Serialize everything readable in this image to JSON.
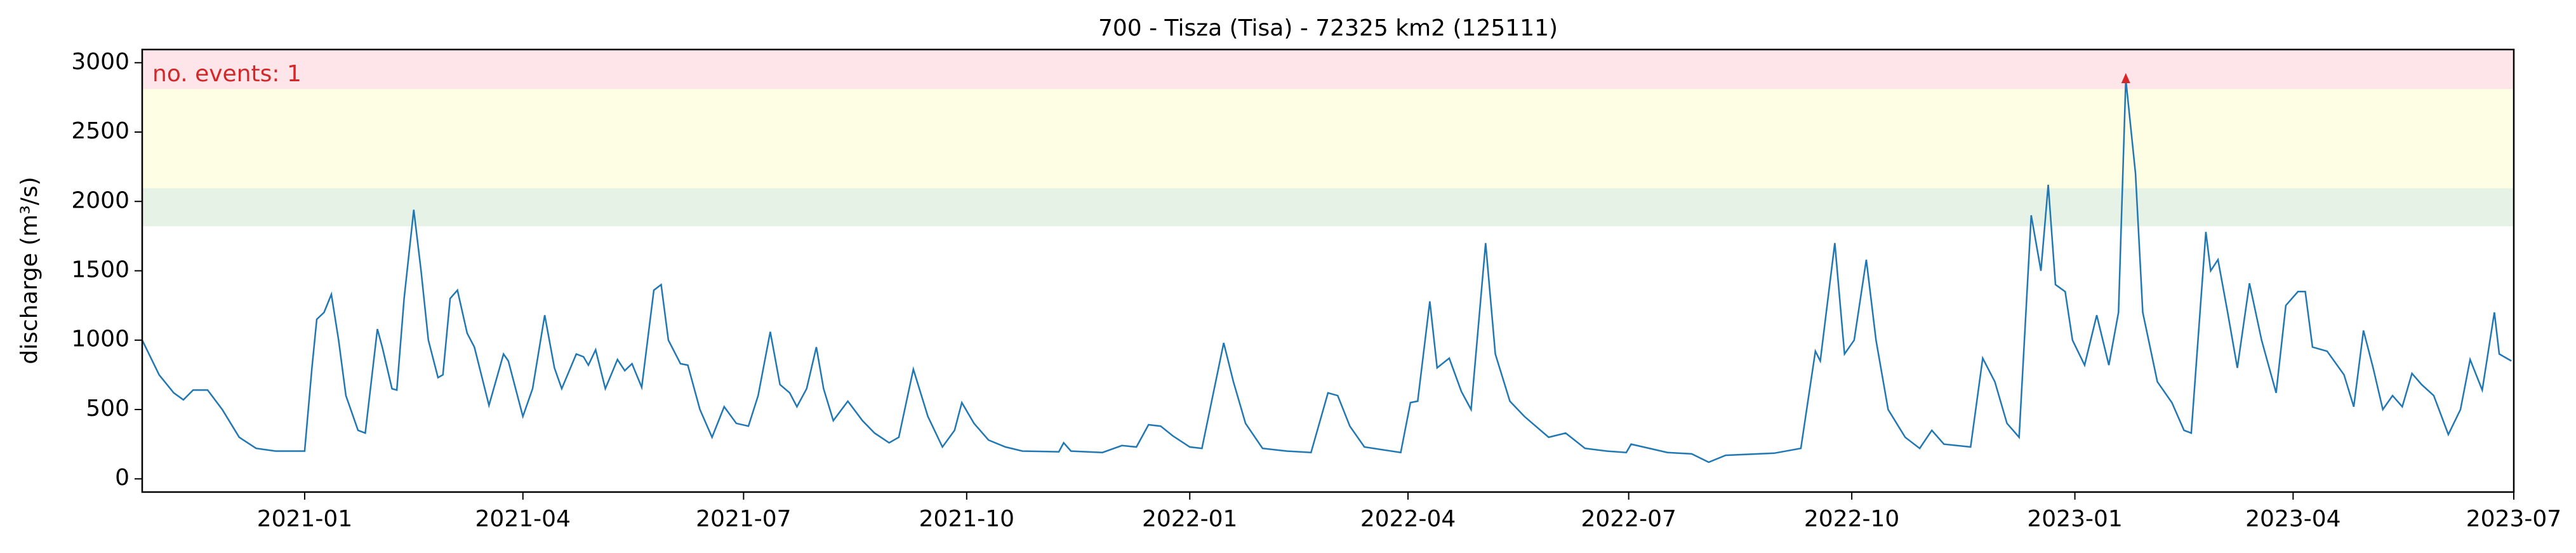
{
  "chart_data": {
    "type": "line",
    "title": "700 - Tisza (Tisa) - 72325 km2 (125111)",
    "y_label": "discharge (m³/s)",
    "annotation": "no. events: 1",
    "xlim": [
      "2020-10-26",
      "2023-07-01"
    ],
    "ylim": [
      -95,
      3095
    ],
    "yticks": [
      0,
      500,
      1000,
      1500,
      2000,
      2500,
      3000
    ],
    "xticks": [
      {
        "value": "2021-01-01",
        "label": "2021-01"
      },
      {
        "value": "2021-04-01",
        "label": "2021-04"
      },
      {
        "value": "2021-07-01",
        "label": "2021-07"
      },
      {
        "value": "2021-10-01",
        "label": "2021-10"
      },
      {
        "value": "2022-01-01",
        "label": "2022-01"
      },
      {
        "value": "2022-04-01",
        "label": "2022-04"
      },
      {
        "value": "2022-07-01",
        "label": "2022-07"
      },
      {
        "value": "2022-10-01",
        "label": "2022-10"
      },
      {
        "value": "2023-01-01",
        "label": "2023-01"
      },
      {
        "value": "2023-04-01",
        "label": "2023-04"
      },
      {
        "value": "2023-07-01",
        "label": "2023-07"
      }
    ],
    "bands": [
      {
        "from": 1821,
        "to": 2095,
        "color": "#e5f2e5"
      },
      {
        "from": 2095,
        "to": 2810,
        "color": "#fefee5"
      },
      {
        "from": 2810,
        "to": 3095,
        "color": "#fee5ea"
      }
    ],
    "events": {
      "color": "#d62728",
      "x": [
        "2023-01-22"
      ],
      "values": [
        2880
      ]
    },
    "x": [
      "2020-10-26",
      "2020-11-02",
      "2020-11-08",
      "2020-11-12",
      "2020-11-16",
      "2020-11-22",
      "2020-11-28",
      "2020-12-05",
      "2020-12-12",
      "2020-12-20",
      "2020-12-28",
      "2021-01-01",
      "2021-01-04",
      "2021-01-06",
      "2021-01-09",
      "2021-01-12",
      "2021-01-15",
      "2021-01-18",
      "2021-01-23",
      "2021-01-26",
      "2021-01-31",
      "2021-02-02",
      "2021-02-06",
      "2021-02-08",
      "2021-02-11",
      "2021-02-15",
      "2021-02-18",
      "2021-02-21",
      "2021-02-25",
      "2021-02-27",
      "2021-03-02",
      "2021-03-05",
      "2021-03-09",
      "2021-03-12",
      "2021-03-18",
      "2021-03-24",
      "2021-03-26",
      "2021-04-01",
      "2021-04-05",
      "2021-04-10",
      "2021-04-14",
      "2021-04-17",
      "2021-04-23",
      "2021-04-26",
      "2021-04-28",
      "2021-05-01",
      "2021-05-05",
      "2021-05-10",
      "2021-05-13",
      "2021-05-16",
      "2021-05-20",
      "2021-05-25",
      "2021-05-28",
      "2021-05-31",
      "2021-06-05",
      "2021-06-08",
      "2021-06-13",
      "2021-06-18",
      "2021-06-23",
      "2021-06-28",
      "2021-07-03",
      "2021-07-07",
      "2021-07-12",
      "2021-07-16",
      "2021-07-20",
      "2021-07-23",
      "2021-07-27",
      "2021-07-31",
      "2021-08-03",
      "2021-08-07",
      "2021-08-13",
      "2021-08-19",
      "2021-08-24",
      "2021-08-30",
      "2021-09-03",
      "2021-09-09",
      "2021-09-15",
      "2021-09-21",
      "2021-09-26",
      "2021-09-29",
      "2021-10-04",
      "2021-10-10",
      "2021-10-17",
      "2021-10-24",
      "2021-11-08",
      "2021-11-10",
      "2021-11-13",
      "2021-11-26",
      "2021-12-04",
      "2021-12-10",
      "2021-12-15",
      "2021-12-20",
      "2021-12-25",
      "2022-01-01",
      "2022-01-06",
      "2022-01-15",
      "2022-01-19",
      "2022-01-24",
      "2022-01-31",
      "2022-02-10",
      "2022-02-20",
      "2022-02-27",
      "2022-03-03",
      "2022-03-08",
      "2022-03-14",
      "2022-03-29",
      "2022-04-02",
      "2022-04-05",
      "2022-04-10",
      "2022-04-13",
      "2022-04-18",
      "2022-04-23",
      "2022-04-27",
      "2022-05-03",
      "2022-05-07",
      "2022-05-13",
      "2022-05-19",
      "2022-05-29",
      "2022-06-05",
      "2022-06-13",
      "2022-06-22",
      "2022-06-30",
      "2022-07-02",
      "2022-07-17",
      "2022-07-27",
      "2022-08-03",
      "2022-08-10",
      "2022-08-30",
      "2022-09-10",
      "2022-09-16",
      "2022-09-18",
      "2022-09-24",
      "2022-09-28",
      "2022-10-02",
      "2022-10-07",
      "2022-10-11",
      "2022-10-16",
      "2022-10-23",
      "2022-10-29",
      "2022-11-03",
      "2022-11-08",
      "2022-11-19",
      "2022-11-24",
      "2022-11-29",
      "2022-12-04",
      "2022-12-09",
      "2022-12-14",
      "2022-12-18",
      "2022-12-21",
      "2022-12-24",
      "2022-12-28",
      "2022-12-31",
      "2023-01-05",
      "2023-01-10",
      "2023-01-15",
      "2023-01-19",
      "2023-01-22",
      "2023-01-26",
      "2023-01-29",
      "2023-02-04",
      "2023-02-10",
      "2023-02-15",
      "2023-02-18",
      "2023-02-24",
      "2023-02-26",
      "2023-03-01",
      "2023-03-05",
      "2023-03-09",
      "2023-03-14",
      "2023-03-19",
      "2023-03-25",
      "2023-03-29",
      "2023-04-03",
      "2023-04-06",
      "2023-04-09",
      "2023-04-15",
      "2023-04-22",
      "2023-04-26",
      "2023-04-30",
      "2023-05-04",
      "2023-05-08",
      "2023-05-12",
      "2023-05-16",
      "2023-05-20",
      "2023-05-24",
      "2023-05-29",
      "2023-06-04",
      "2023-06-09",
      "2023-06-13",
      "2023-06-18",
      "2023-06-23",
      "2023-06-25",
      "2023-06-30"
    ],
    "series": [
      {
        "color": "#1f77b4",
        "values": [
          1000,
          750,
          620,
          570,
          640,
          640,
          500,
          300,
          220,
          200,
          200,
          200,
          800,
          1150,
          1200,
          1330,
          1000,
          600,
          350,
          330,
          1080,
          950,
          650,
          640,
          1300,
          1940,
          1500,
          1000,
          730,
          750,
          1300,
          1360,
          1050,
          950,
          530,
          900,
          850,
          450,
          650,
          1180,
          800,
          650,
          900,
          880,
          820,
          930,
          650,
          860,
          780,
          830,
          660,
          1360,
          1400,
          1000,
          830,
          820,
          500,
          300,
          520,
          400,
          380,
          600,
          1060,
          680,
          620,
          520,
          650,
          950,
          650,
          420,
          560,
          420,
          330,
          260,
          300,
          790,
          450,
          230,
          350,
          550,
          400,
          280,
          230,
          200,
          195,
          260,
          200,
          190,
          240,
          230,
          390,
          380,
          310,
          230,
          220,
          980,
          700,
          400,
          220,
          200,
          190,
          620,
          600,
          380,
          230,
          190,
          550,
          560,
          1280,
          800,
          870,
          630,
          500,
          1700,
          900,
          560,
          450,
          300,
          330,
          220,
          200,
          190,
          250,
          190,
          180,
          120,
          170,
          185,
          220,
          920,
          850,
          1700,
          900,
          1000,
          1580,
          1000,
          500,
          300,
          220,
          350,
          250,
          230,
          870,
          700,
          400,
          300,
          1900,
          1500,
          2120,
          1400,
          1350,
          1000,
          820,
          1180,
          820,
          1200,
          2880,
          2200,
          1200,
          700,
          550,
          350,
          330,
          1780,
          1500,
          1580,
          1200,
          800,
          1410,
          1000,
          620,
          1250,
          1350,
          1350,
          950,
          920,
          750,
          520,
          1070,
          800,
          500,
          600,
          520,
          760,
          680,
          600,
          320,
          500,
          860,
          640,
          1200,
          900,
          850
        ]
      }
    ]
  }
}
